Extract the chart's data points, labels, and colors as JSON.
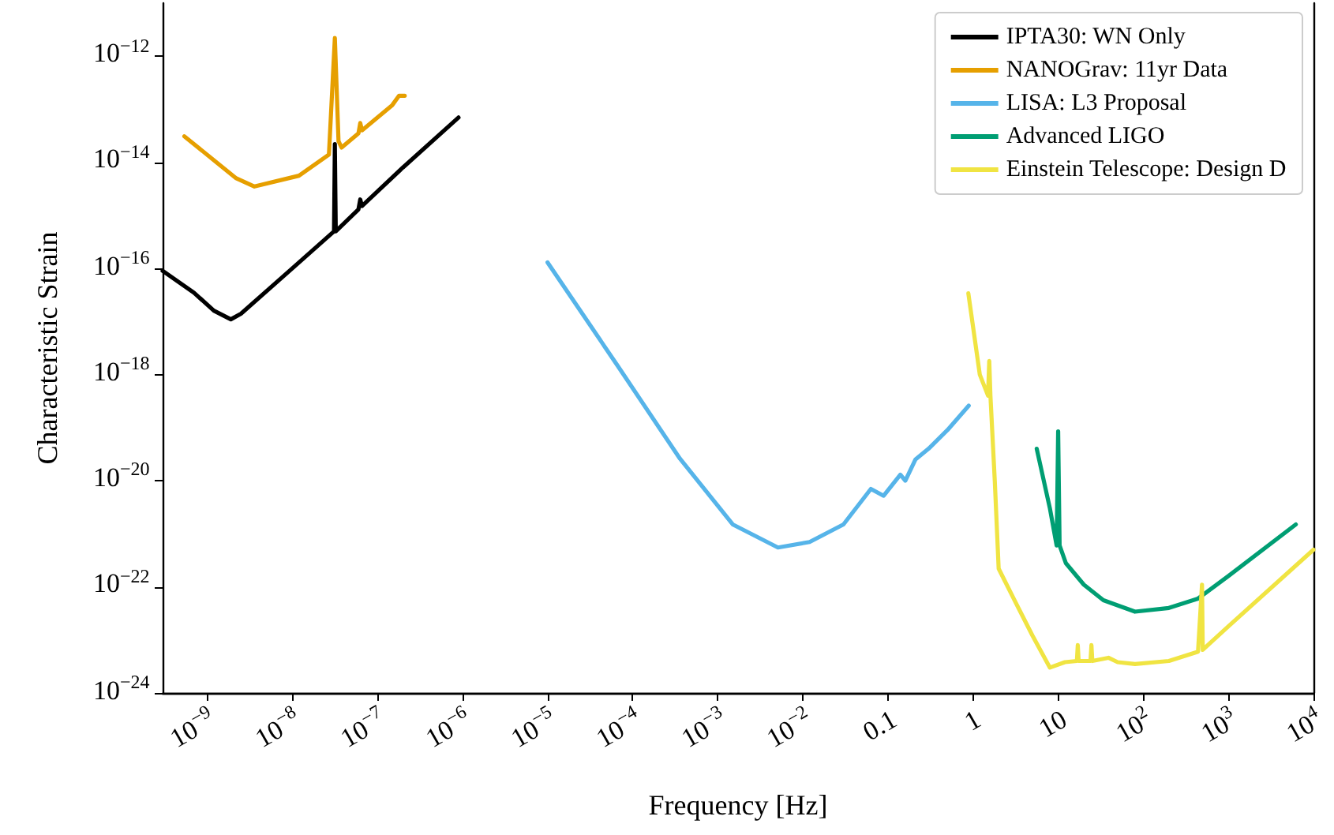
{
  "chart_data": {
    "type": "line",
    "xlabel": "Frequency [Hz]",
    "ylabel": "Characteristic Strain",
    "log": "xy",
    "legend": "top right",
    "xlim": [
      3e-10,
      10000
    ],
    "ylim": [
      1e-24,
      1e-11
    ],
    "xticks": [
      {
        "value": 1e-09,
        "label": "10$^{−9}$"
      },
      {
        "value": 1e-08,
        "label": "10$^{−8}$"
      },
      {
        "value": 1e-07,
        "label": "10$^{−7}$"
      },
      {
        "value": 1e-06,
        "label": "10$^{−6}$"
      },
      {
        "value": 1e-05,
        "label": "10$^{−5}$"
      },
      {
        "value": 0.0001,
        "label": "10$^{−4}$"
      },
      {
        "value": 0.001,
        "label": "10$^{−3}$"
      },
      {
        "value": 0.01,
        "label": "10$^{−2}$"
      },
      0.1,
      1,
      10,
      {
        "value": 100,
        "label": "10$^{2}$"
      },
      {
        "value": 1000,
        "label": "10$^{3}$"
      },
      {
        "value": 10000,
        "label": "10$^{4}$"
      }
    ],
    "yticks": [
      {
        "value": 1e-24,
        "label": "10$^{−24}$"
      },
      {
        "value": 1e-22,
        "label": "10$^{−22}$"
      },
      {
        "value": 1e-20,
        "label": "10$^{−20}$"
      },
      {
        "value": 1e-18,
        "label": "10$^{−18}$"
      },
      {
        "value": 1e-16,
        "label": "10$^{−16}$"
      },
      {
        "value": 1e-14,
        "label": "10$^{−14}$"
      },
      {
        "value": 1e-12,
        "label": "10$^{−12}$"
      }
    ],
    "series": [
      {
        "name": "IPTA30: WN Only",
        "color": "#000000",
        "x": [
          3e-10,
          7e-10,
          1.2e-09,
          1.9e-09,
          2.5e-09,
          1e-08,
          3.1e-08,
          3.17e-08,
          3.25e-08,
          6e-08,
          6.3e-08,
          6.6e-08,
          2e-07,
          9e-07
        ],
        "values": [
          9e-17,
          3.5e-17,
          1.6e-17,
          1.1e-17,
          1.4e-17,
          1e-16,
          5e-16,
          2.2e-14,
          5e-16,
          1.3e-15,
          2e-15,
          1.5e-15,
          8e-15,
          7e-14
        ]
      },
      {
        "name": "NANOGrav: 11yr Data",
        "color": "#e69f00",
        "x": [
          5.4e-10,
          1.2e-09,
          2.2e-09,
          3.6e-09,
          1.2e-08,
          2.7e-08,
          3.17e-08,
          3.5e-08,
          3.8e-08,
          6e-08,
          6.3e-08,
          6.6e-08,
          1.5e-07,
          1.8e-07,
          2.1e-07
        ],
        "values": [
          3.1e-14,
          1.1e-14,
          5e-15,
          3.5e-15,
          5.6e-15,
          1.4e-14,
          2.2e-12,
          2.5e-14,
          1.9e-14,
          3.5e-14,
          5.5e-14,
          4e-14,
          1.2e-13,
          1.8e-13,
          1.8e-13
        ]
      },
      {
        "name": "LISA: L3 Proposal",
        "color": "#56b4e9",
        "x": [
          1e-05,
          6.6e-05,
          0.00036,
          0.0015,
          0.0051,
          0.012,
          0.03,
          0.063,
          0.089,
          0.14,
          0.16,
          0.21,
          0.3,
          0.5,
          0.89
        ],
        "values": [
          1.3e-16,
          1.5e-18,
          2.6e-20,
          1.5e-21,
          5.5e-22,
          7e-22,
          1.5e-21,
          7e-21,
          5.2e-21,
          1.3e-20,
          1e-20,
          2.5e-20,
          4e-20,
          9e-20,
          2.6e-19
        ]
      },
      {
        "name": "Advanced LIGO",
        "color": "#009e73",
        "x": [
          5.6,
          8,
          9.6,
          10,
          10.4,
          12.3,
          20,
          34,
          80,
          200,
          440,
          1000,
          6200
        ],
        "values": [
          4e-20,
          3e-21,
          6e-22,
          8.5e-20,
          6e-22,
          2.8e-22,
          1.1e-22,
          5.6e-23,
          3.4e-23,
          4e-23,
          6e-23,
          1.6e-22,
          1.5e-21
        ]
      },
      {
        "name": "Einstein Telescope: Design D",
        "color": "#f0e442",
        "x": [
          0.88,
          1.2,
          1.5,
          1.55,
          1.6,
          1.8,
          2,
          3,
          5,
          8,
          12,
          16.6,
          17,
          17.4,
          24,
          24.6,
          25.2,
          39,
          50,
          80,
          200,
          440,
          490,
          500,
          1000,
          10000
        ],
        "values": [
          3.4e-17,
          1e-18,
          4e-19,
          1.8e-18,
          4e-19,
          1e-20,
          2.2e-22,
          6e-23,
          1.2e-23,
          3e-24,
          3.8e-24,
          4e-24,
          8e-24,
          4e-24,
          4e-24,
          8e-24,
          4e-24,
          4.6e-24,
          3.8e-24,
          3.5e-24,
          4e-24,
          6e-24,
          1.1e-22,
          6.5e-24,
          1.8e-23,
          5e-22
        ]
      }
    ]
  }
}
